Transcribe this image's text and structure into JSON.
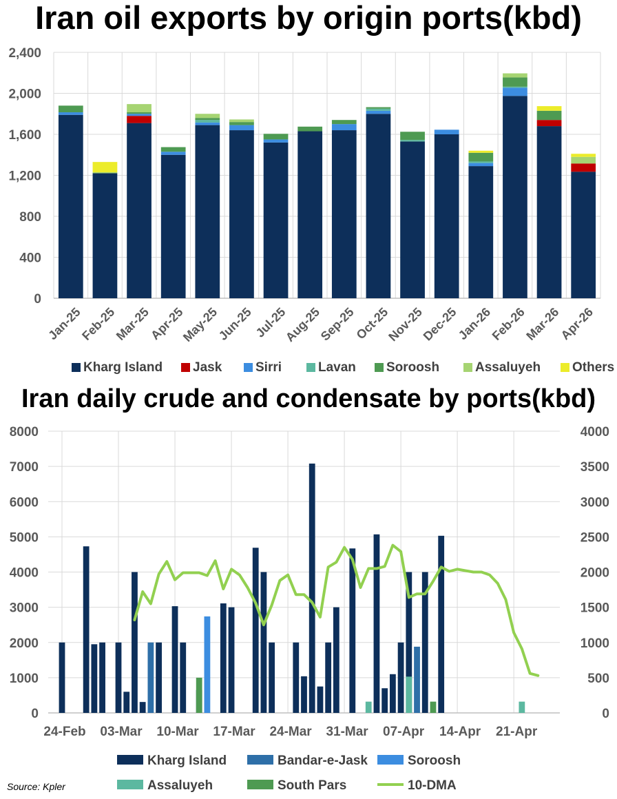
{
  "chart_data": [
    {
      "type": "bar",
      "stacked": true,
      "title": "Iran oil exports by origin ports(kbd)",
      "categories": [
        "Jan-25",
        "Feb-25",
        "Mar-25",
        "Apr-25",
        "May-25",
        "Jun-25",
        "Jul-25",
        "Aug-25",
        "Sep-25",
        "Oct-25",
        "Nov-25",
        "Dec-25",
        "Jan-26",
        "Feb-26",
        "Mar-26",
        "Apr-26"
      ],
      "ylim": [
        0,
        2400
      ],
      "yticks": [
        0,
        400,
        800,
        1200,
        1600,
        2000,
        2400
      ],
      "ytick_labels": [
        "0",
        "400",
        "800",
        "1,200",
        "1,600",
        "2,000",
        "2,400"
      ],
      "grid": true,
      "legend": "bottom",
      "series": [
        {
          "name": "Kharg Island",
          "color": "#0d2f5a",
          "values": [
            1790,
            1220,
            1710,
            1400,
            1690,
            1640,
            1520,
            1630,
            1640,
            1800,
            1530,
            1600,
            1290,
            1975,
            1680,
            1235
          ]
        },
        {
          "name": "Jask",
          "color": "#c00000",
          "values": [
            0,
            0,
            70,
            0,
            0,
            0,
            0,
            0,
            0,
            0,
            0,
            0,
            0,
            0,
            60,
            80
          ]
        },
        {
          "name": "Sirri",
          "color": "#3c8de0",
          "values": [
            25,
            0,
            20,
            30,
            25,
            50,
            30,
            0,
            60,
            30,
            0,
            45,
            30,
            80,
            0,
            0
          ]
        },
        {
          "name": "Lavan",
          "color": "#5cb8a0",
          "values": [
            0,
            0,
            0,
            0,
            25,
            0,
            0,
            0,
            0,
            20,
            15,
            0,
            15,
            10,
            0,
            0
          ]
        },
        {
          "name": "Soroosh",
          "color": "#4e9a52",
          "values": [
            65,
            0,
            15,
            45,
            20,
            30,
            55,
            45,
            40,
            15,
            80,
            0,
            85,
            90,
            90,
            0
          ]
        },
        {
          "name": "Assaluyeh",
          "color": "#a6d472",
          "values": [
            0,
            10,
            80,
            0,
            40,
            25,
            0,
            0,
            0,
            0,
            0,
            0,
            0,
            40,
            0,
            65
          ]
        },
        {
          "name": "Others",
          "color": "#ecec2a",
          "values": [
            0,
            100,
            0,
            0,
            0,
            0,
            0,
            0,
            0,
            0,
            0,
            0,
            20,
            0,
            45,
            30
          ]
        }
      ]
    },
    {
      "type": "bar+line",
      "title": "Iran daily crude and condensate by ports(kbd)",
      "x_labels": [
        "24-Feb",
        "03-Mar",
        "10-Mar",
        "17-Mar",
        "24-Mar",
        "31-Mar",
        "07-Apr",
        "14-Apr",
        "21-Apr"
      ],
      "x_range_days": [
        0,
        60
      ],
      "ylim_left": [
        0,
        8000
      ],
      "yticks_left": [
        0,
        1000,
        2000,
        3000,
        4000,
        5000,
        6000,
        7000,
        8000
      ],
      "ylim_right": [
        0,
        4000
      ],
      "yticks_right": [
        0,
        500,
        1000,
        1500,
        2000,
        2500,
        3000,
        3500,
        4000
      ],
      "grid": true,
      "legend": "bottom",
      "series": [
        {
          "name": "Kharg Island",
          "color": "#0d2f5a",
          "points": [
            [
              0,
              2000
            ],
            [
              3,
              4730
            ],
            [
              4,
              1950
            ],
            [
              5,
              2000
            ],
            [
              7,
              2000
            ],
            [
              8,
              600
            ],
            [
              9,
              4000
            ],
            [
              10,
              310
            ],
            [
              12,
              2000
            ],
            [
              14,
              3030
            ],
            [
              15,
              2000
            ],
            [
              17,
              650
            ],
            [
              20,
              3110
            ],
            [
              21,
              3000
            ],
            [
              24,
              4690
            ],
            [
              25,
              4000
            ],
            [
              26,
              2000
            ],
            [
              29,
              2000
            ],
            [
              30,
              1040
            ],
            [
              31,
              7080
            ],
            [
              32,
              750
            ],
            [
              33,
              2000
            ],
            [
              34,
              3000
            ],
            [
              36,
              4670
            ],
            [
              39,
              5070
            ],
            [
              40,
              700
            ],
            [
              41,
              1100
            ],
            [
              42,
              2000
            ],
            [
              43,
              4000
            ],
            [
              45,
              4000
            ],
            [
              47,
              5030
            ]
          ]
        },
        {
          "name": "Bandar-e-Jask",
          "color": "#2e6fa8",
          "points": [
            [
              11,
              2000
            ],
            [
              44,
              1880
            ]
          ]
        },
        {
          "name": "Soroosh",
          "color": "#3c8de0",
          "points": [
            [
              18,
              2740
            ]
          ]
        },
        {
          "name": "Assaluyeh",
          "color": "#5cb8a0",
          "points": [
            [
              38,
              320
            ],
            [
              43,
              1030
            ],
            [
              57,
              320
            ]
          ]
        },
        {
          "name": "South Pars",
          "color": "#4e9a52",
          "points": [
            [
              17,
              1000
            ],
            [
              46,
              320
            ]
          ]
        },
        {
          "name": "10-DMA",
          "color": "#92d050",
          "axis": "right",
          "points": [
            [
              9,
              1320
            ],
            [
              10,
              1720
            ],
            [
              11,
              1550
            ],
            [
              12,
              1970
            ],
            [
              13,
              2150
            ],
            [
              14,
              1890
            ],
            [
              15,
              1990
            ],
            [
              16,
              1990
            ],
            [
              17,
              1990
            ],
            [
              18,
              1950
            ],
            [
              19,
              2160
            ],
            [
              20,
              1760
            ],
            [
              21,
              2040
            ],
            [
              22,
              1960
            ],
            [
              23,
              1780
            ],
            [
              24,
              1560
            ],
            [
              25,
              1250
            ],
            [
              26,
              1530
            ],
            [
              27,
              1880
            ],
            [
              28,
              1960
            ],
            [
              29,
              1680
            ],
            [
              30,
              1680
            ],
            [
              31,
              1570
            ],
            [
              32,
              1360
            ],
            [
              33,
              2070
            ],
            [
              34,
              2140
            ],
            [
              35,
              2350
            ],
            [
              36,
              2180
            ],
            [
              37,
              1780
            ],
            [
              38,
              2050
            ],
            [
              39,
              2050
            ],
            [
              40,
              2080
            ],
            [
              41,
              2380
            ],
            [
              42,
              2290
            ],
            [
              43,
              1640
            ],
            [
              44,
              1690
            ],
            [
              45,
              1690
            ],
            [
              46,
              1870
            ],
            [
              47,
              2070
            ],
            [
              48,
              2010
            ],
            [
              49,
              2040
            ],
            [
              50,
              2020
            ],
            [
              51,
              2000
            ],
            [
              52,
              2000
            ],
            [
              53,
              1960
            ],
            [
              54,
              1840
            ],
            [
              55,
              1610
            ],
            [
              56,
              1140
            ],
            [
              57,
              910
            ],
            [
              58,
              560
            ],
            [
              59,
              530
            ]
          ]
        }
      ]
    }
  ],
  "source": "Source: Kpler"
}
